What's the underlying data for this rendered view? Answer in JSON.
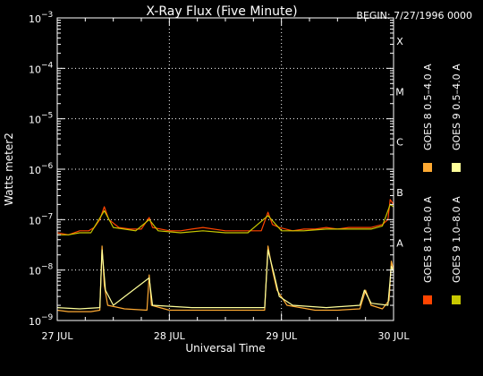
{
  "chart_data": {
    "type": "line",
    "title": "X-Ray Flux (Five Minute)",
    "begin_label": "BEGIN: 7/27/1996 0000",
    "xlabel": "Universal Time",
    "ylabel": "Watts meter2",
    "y_scale": "log",
    "ylim": [
      1e-09,
      0.001
    ],
    "xlim": [
      0,
      3
    ],
    "x_unit": "days since 27 JUL 1996 00:00 UT",
    "x_ticks": [
      {
        "x": 0,
        "label": "27 JUL"
      },
      {
        "x": 1,
        "label": "28 JUL"
      },
      {
        "x": 2,
        "label": "29 JUL"
      },
      {
        "x": 3,
        "label": "30 JUL"
      }
    ],
    "y_ticks": [
      {
        "value": 1e-09,
        "base": "10",
        "exp": "−9"
      },
      {
        "value": 1e-08,
        "base": "10",
        "exp": "−8"
      },
      {
        "value": 1e-07,
        "base": "10",
        "exp": "−7"
      },
      {
        "value": 1e-06,
        "base": "10",
        "exp": "−6"
      },
      {
        "value": 1e-05,
        "base": "10",
        "exp": "−5"
      },
      {
        "value": 0.0001,
        "base": "10",
        "exp": "−4"
      },
      {
        "value": 0.001,
        "base": "10",
        "exp": "−3"
      }
    ],
    "flare_classes": [
      {
        "label": "X",
        "value": 0.0001
      },
      {
        "label": "M",
        "value": 1e-05
      },
      {
        "label": "C",
        "value": 1e-06
      },
      {
        "label": "B",
        "value": 1e-07
      },
      {
        "label": "A",
        "value": 1e-08
      }
    ],
    "grid": "dotted at decades and day boundaries",
    "legend_position": "right, vertical",
    "series": [
      {
        "name": "GOES 8 1.0–8.0 A",
        "color": "#ff4400",
        "points": [
          [
            0,
            5.5e-08
          ],
          [
            0.1,
            5e-08
          ],
          [
            0.2,
            6e-08
          ],
          [
            0.28,
            6e-08
          ],
          [
            0.33,
            7e-08
          ],
          [
            0.38,
            1e-07
          ],
          [
            0.42,
            1.8e-07
          ],
          [
            0.46,
            1e-07
          ],
          [
            0.55,
            7e-08
          ],
          [
            0.65,
            6.5e-08
          ],
          [
            0.75,
            6.5e-08
          ],
          [
            0.82,
            1.1e-07
          ],
          [
            0.85,
            7e-08
          ],
          [
            1.0,
            6e-08
          ],
          [
            1.1,
            6e-08
          ],
          [
            1.2,
            6.5e-08
          ],
          [
            1.3,
            7e-08
          ],
          [
            1.5,
            6e-08
          ],
          [
            1.7,
            6e-08
          ],
          [
            1.82,
            6e-08
          ],
          [
            1.88,
            1.4e-07
          ],
          [
            1.92,
            8e-08
          ],
          [
            1.98,
            7e-08
          ],
          [
            2.1,
            6e-08
          ],
          [
            2.2,
            6.5e-08
          ],
          [
            2.3,
            6.5e-08
          ],
          [
            2.4,
            7e-08
          ],
          [
            2.5,
            6.5e-08
          ],
          [
            2.6,
            7e-08
          ],
          [
            2.7,
            7e-08
          ],
          [
            2.8,
            7e-08
          ],
          [
            2.9,
            8e-08
          ],
          [
            2.95,
            1e-07
          ],
          [
            2.97,
            2.5e-07
          ],
          [
            3.0,
            2e-07
          ]
        ]
      },
      {
        "name": "GOES 8 0.5–4.0 A",
        "color": "#ffaa33",
        "points": [
          [
            0,
            1.6e-09
          ],
          [
            0.1,
            1.5e-09
          ],
          [
            0.3,
            1.5e-09
          ],
          [
            0.38,
            1.6e-09
          ],
          [
            0.4,
            3e-08
          ],
          [
            0.42,
            5e-09
          ],
          [
            0.45,
            2e-09
          ],
          [
            0.6,
            1.7e-09
          ],
          [
            0.8,
            1.6e-09
          ],
          [
            0.82,
            8e-09
          ],
          [
            0.84,
            2e-09
          ],
          [
            1.0,
            1.6e-09
          ],
          [
            1.3,
            1.6e-09
          ],
          [
            1.6,
            1.6e-09
          ],
          [
            1.85,
            1.6e-09
          ],
          [
            1.88,
            3e-08
          ],
          [
            1.92,
            1e-08
          ],
          [
            1.96,
            4e-09
          ],
          [
            2.05,
            2e-09
          ],
          [
            2.3,
            1.6e-09
          ],
          [
            2.5,
            1.6e-09
          ],
          [
            2.7,
            1.7e-09
          ],
          [
            2.75,
            4e-09
          ],
          [
            2.8,
            2e-09
          ],
          [
            2.9,
            1.7e-09
          ],
          [
            2.96,
            2.5e-09
          ],
          [
            2.98,
            1.5e-08
          ],
          [
            3.0,
            1e-08
          ]
        ]
      },
      {
        "name": "GOES 9 1.0–8.0 A",
        "color": "#c8c800",
        "points": [
          [
            0,
            5e-08
          ],
          [
            0.1,
            5e-08
          ],
          [
            0.2,
            5.5e-08
          ],
          [
            0.3,
            5.5e-08
          ],
          [
            0.42,
            1.5e-07
          ],
          [
            0.5,
            7e-08
          ],
          [
            0.7,
            6e-08
          ],
          [
            0.82,
            1e-07
          ],
          [
            0.9,
            6e-08
          ],
          [
            1.1,
            5.5e-08
          ],
          [
            1.3,
            6e-08
          ],
          [
            1.5,
            5.5e-08
          ],
          [
            1.7,
            5.5e-08
          ],
          [
            1.88,
            1.2e-07
          ],
          [
            2.0,
            6e-08
          ],
          [
            2.2,
            6e-08
          ],
          [
            2.4,
            6.5e-08
          ],
          [
            2.6,
            6.5e-08
          ],
          [
            2.8,
            6.5e-08
          ],
          [
            2.9,
            7.5e-08
          ],
          [
            2.97,
            2e-07
          ],
          [
            3.0,
            1.8e-07
          ]
        ]
      },
      {
        "name": "GOES 9 0.5–4.0 A",
        "color": "#ffff99",
        "points": [
          [
            0,
            1.8e-09
          ],
          [
            0.2,
            1.7e-09
          ],
          [
            0.38,
            1.8e-09
          ],
          [
            0.4,
            2.5e-08
          ],
          [
            0.43,
            4e-09
          ],
          [
            0.5,
            2e-09
          ],
          [
            0.82,
            7e-09
          ],
          [
            0.85,
            2e-09
          ],
          [
            1.2,
            1.8e-09
          ],
          [
            1.5,
            1.8e-09
          ],
          [
            1.85,
            1.8e-09
          ],
          [
            1.88,
            2.5e-08
          ],
          [
            1.93,
            9e-09
          ],
          [
            1.98,
            3e-09
          ],
          [
            2.1,
            2e-09
          ],
          [
            2.4,
            1.8e-09
          ],
          [
            2.7,
            2e-09
          ],
          [
            2.74,
            4e-09
          ],
          [
            2.8,
            2.2e-09
          ],
          [
            2.95,
            2e-09
          ],
          [
            2.98,
            1.2e-08
          ],
          [
            3.0,
            9e-09
          ]
        ]
      }
    ]
  }
}
